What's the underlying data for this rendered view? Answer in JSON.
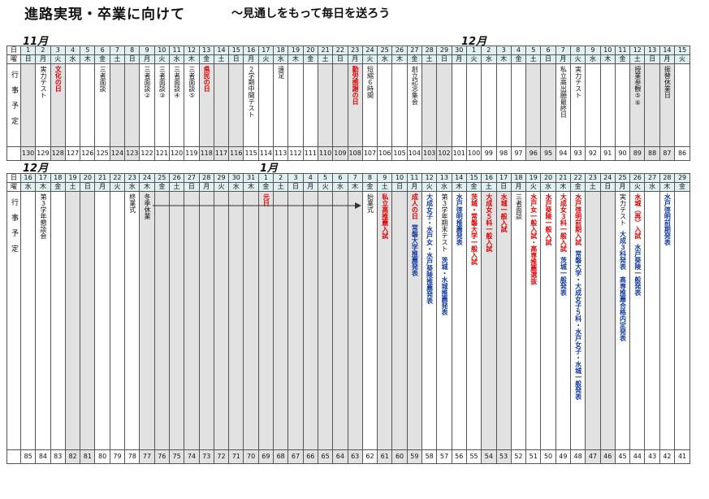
{
  "header": {
    "title": "進路実現・卒業に向けて",
    "subtitle": "～見通しをもって毎日を送ろう"
  },
  "labels": {
    "day": "日",
    "weekday": "曜",
    "events": "行事予定"
  },
  "table1": {
    "months": [
      {
        "label": "11月"
      },
      {
        "label": "12月"
      }
    ],
    "days": [
      {
        "d": "1",
        "w": "日",
        "e": "",
        "c": "130",
        "shade": true
      },
      {
        "d": "2",
        "w": "月",
        "e": "実力テスト",
        "c": "129"
      },
      {
        "d": "3",
        "w": "火",
        "e": "文化の日",
        "c": "128",
        "shade": true,
        "color": "red"
      },
      {
        "d": "4",
        "w": "水",
        "e": "",
        "c": "127"
      },
      {
        "d": "5",
        "w": "木",
        "e": "",
        "c": "126"
      },
      {
        "d": "6",
        "w": "金",
        "e": "三者面談",
        "c": "125"
      },
      {
        "d": "7",
        "w": "土",
        "e": "",
        "c": "124",
        "shade": true
      },
      {
        "d": "8",
        "w": "日",
        "e": "",
        "c": "123",
        "shade": true
      },
      {
        "d": "9",
        "w": "月",
        "e": "三者面談②",
        "c": "122"
      },
      {
        "d": "10",
        "w": "火",
        "e": "三者面談③",
        "c": "121"
      },
      {
        "d": "11",
        "w": "水",
        "e": "三者面談④",
        "c": "120"
      },
      {
        "d": "12",
        "w": "木",
        "e": "三者面談⑤",
        "c": "119"
      },
      {
        "d": "13",
        "w": "金",
        "e": "県民の日",
        "c": "118",
        "shade": true,
        "color": "red"
      },
      {
        "d": "14",
        "w": "土",
        "e": "",
        "c": "117",
        "shade": true
      },
      {
        "d": "15",
        "w": "日",
        "e": "",
        "c": "116",
        "shade": true
      },
      {
        "d": "16",
        "w": "月",
        "e": "２学期中間テスト",
        "c": "115"
      },
      {
        "d": "17",
        "w": "火",
        "e": "",
        "c": "114"
      },
      {
        "d": "18",
        "w": "水",
        "e": "遠足",
        "c": "113"
      },
      {
        "d": "19",
        "w": "木",
        "e": "",
        "c": "112"
      },
      {
        "d": "20",
        "w": "金",
        "e": "",
        "c": "111"
      },
      {
        "d": "21",
        "w": "土",
        "e": "",
        "c": "110",
        "shade": true
      },
      {
        "d": "22",
        "w": "日",
        "e": "",
        "c": "109",
        "shade": true
      },
      {
        "d": "23",
        "w": "月",
        "e": "勤労感謝の日",
        "c": "108",
        "shade": true,
        "color": "red"
      },
      {
        "d": "24",
        "w": "火",
        "e": "短縮６時間",
        "c": "107"
      },
      {
        "d": "25",
        "w": "水",
        "e": "",
        "c": "106"
      },
      {
        "d": "26",
        "w": "木",
        "e": "",
        "c": "105"
      },
      {
        "d": "27",
        "w": "金",
        "e": "創立記念集会",
        "c": "104"
      },
      {
        "d": "28",
        "w": "土",
        "e": "",
        "c": "103",
        "shade": true
      },
      {
        "d": "29",
        "w": "日",
        "e": "",
        "c": "102",
        "shade": true
      },
      {
        "d": "30",
        "w": "月",
        "e": "",
        "c": "101"
      },
      {
        "d": "1",
        "w": "火",
        "e": "",
        "c": "100"
      },
      {
        "d": "2",
        "w": "水",
        "e": "",
        "c": "99"
      },
      {
        "d": "3",
        "w": "木",
        "e": "",
        "c": "98"
      },
      {
        "d": "4",
        "w": "金",
        "e": "",
        "c": "97"
      },
      {
        "d": "5",
        "w": "土",
        "e": "",
        "c": "96",
        "shade": true
      },
      {
        "d": "6",
        "w": "日",
        "e": "",
        "c": "95",
        "shade": true
      },
      {
        "d": "7",
        "w": "月",
        "e": "私立高出願最終日",
        "c": "94"
      },
      {
        "d": "8",
        "w": "火",
        "e": "実力テスト",
        "c": "93"
      },
      {
        "d": "9",
        "w": "水",
        "e": "",
        "c": "92"
      },
      {
        "d": "10",
        "w": "木",
        "e": "",
        "c": "91"
      },
      {
        "d": "11",
        "w": "金",
        "e": "",
        "c": "90"
      },
      {
        "d": "12",
        "w": "土",
        "e": "授業参観⑤⑥",
        "c": "89",
        "shade": true
      },
      {
        "d": "13",
        "w": "日",
        "e": "",
        "c": "88",
        "shade": true
      },
      {
        "d": "14",
        "w": "月",
        "e": "振替休業日",
        "c": "87",
        "shade": true
      },
      {
        "d": "15",
        "w": "火",
        "e": "",
        "c": "86"
      }
    ]
  },
  "table2": {
    "months": [
      {
        "label": "12月"
      },
      {
        "label": "1月"
      }
    ],
    "days": [
      {
        "d": "16",
        "w": "水",
        "e": "",
        "c": "85"
      },
      {
        "d": "17",
        "w": "木",
        "e": "第３学年懇談会",
        "c": "84"
      },
      {
        "d": "18",
        "w": "金",
        "e": "",
        "c": "83"
      },
      {
        "d": "19",
        "w": "土",
        "e": "",
        "c": "82",
        "shade": true
      },
      {
        "d": "20",
        "w": "日",
        "e": "",
        "c": "81",
        "shade": true
      },
      {
        "d": "21",
        "w": "月",
        "e": "",
        "c": "80"
      },
      {
        "d": "22",
        "w": "火",
        "e": "",
        "c": "79"
      },
      {
        "d": "23",
        "w": "水",
        "e": "終業式",
        "c": "78"
      },
      {
        "d": "24",
        "w": "木",
        "e": "冬季休業",
        "c": "77",
        "shade": true
      },
      {
        "d": "25",
        "w": "金",
        "e": "",
        "c": "76",
        "shade": true
      },
      {
        "d": "26",
        "w": "土",
        "e": "",
        "c": "75",
        "shade": true
      },
      {
        "d": "27",
        "w": "日",
        "e": "",
        "c": "74",
        "shade": true
      },
      {
        "d": "28",
        "w": "月",
        "e": "",
        "c": "73",
        "shade": true
      },
      {
        "d": "29",
        "w": "火",
        "e": "",
        "c": "72",
        "shade": true
      },
      {
        "d": "30",
        "w": "水",
        "e": "",
        "c": "71",
        "shade": true
      },
      {
        "d": "31",
        "w": "木",
        "e": "",
        "c": "70",
        "shade": true
      },
      {
        "d": "1",
        "w": "金",
        "e": "元日",
        "c": "69",
        "shade": true,
        "color": "red"
      },
      {
        "d": "2",
        "w": "土",
        "e": "",
        "c": "68",
        "shade": true
      },
      {
        "d": "3",
        "w": "日",
        "e": "",
        "c": "67",
        "shade": true
      },
      {
        "d": "4",
        "w": "月",
        "e": "",
        "c": "66",
        "shade": true
      },
      {
        "d": "5",
        "w": "火",
        "e": "",
        "c": "65",
        "shade": true
      },
      {
        "d": "6",
        "w": "水",
        "e": "",
        "c": "64",
        "shade": true
      },
      {
        "d": "7",
        "w": "木",
        "e": "",
        "c": "63",
        "shade": true
      },
      {
        "d": "8",
        "w": "金",
        "e": "始業式",
        "c": "62"
      },
      {
        "d": "9",
        "w": "土",
        "e": "私立高推薦入試",
        "c": "61",
        "shade": true,
        "color": "red"
      },
      {
        "d": "10",
        "w": "日",
        "e": "",
        "c": "60",
        "shade": true
      },
      {
        "d": "11",
        "w": "月",
        "e": "成人の日",
        "e2": "常磐大学推薦発表",
        "c": "59",
        "shade": true,
        "color": "red",
        "color2": "blue"
      },
      {
        "d": "12",
        "w": "火",
        "e": "大成女子・水戸女・水戸葵陵推薦発表",
        "c": "58",
        "color": "blue"
      },
      {
        "d": "13",
        "w": "水",
        "e": "第３学年期末テスト",
        "e2": "茨城・水城推薦発表",
        "c": "57",
        "color2": "blue"
      },
      {
        "d": "14",
        "w": "木",
        "e": "水戸啓明推薦発表",
        "c": "56",
        "color": "blue"
      },
      {
        "d": "15",
        "w": "金",
        "e": "茨城・常磐大学一般入試",
        "c": "55",
        "color": "red"
      },
      {
        "d": "16",
        "w": "土",
        "e": "大成女５科一般入試",
        "c": "54",
        "shade": true,
        "color": "red"
      },
      {
        "d": "17",
        "w": "日",
        "e": "水城一般入試",
        "c": "53",
        "shade": true,
        "color": "red"
      },
      {
        "d": "18",
        "w": "月",
        "e": "三者面談",
        "c": "52"
      },
      {
        "d": "19",
        "w": "火",
        "e": "水戸女一般入試・高専推薦選抜",
        "c": "51",
        "color": "red"
      },
      {
        "d": "20",
        "w": "水",
        "e": "水戸葵陵一般入試",
        "c": "50",
        "color": "red"
      },
      {
        "d": "21",
        "w": "木",
        "e": "大成女３科一般入試",
        "e2": "茨城一般発表",
        "c": "49",
        "color": "red",
        "color2": "blue"
      },
      {
        "d": "22",
        "w": "金",
        "e": "水戸啓明前期入試",
        "e2": "常磐大学・大成女子５科・水戸女子・水城一般発表",
        "c": "48",
        "color": "red",
        "color2": "blue"
      },
      {
        "d": "23",
        "w": "土",
        "e": "",
        "c": "47",
        "shade": true
      },
      {
        "d": "24",
        "w": "日",
        "e": "",
        "c": "46",
        "shade": true
      },
      {
        "d": "25",
        "w": "月",
        "e": "実力テスト",
        "e2": "大成３科発表　高専推薦合格内定発表",
        "c": "45",
        "color2": "blue"
      },
      {
        "d": "26",
        "w": "火",
        "e": "水城（再）入試",
        "e2": "水戸葵陵一般発表",
        "c": "44",
        "color": "red",
        "color2": "blue"
      },
      {
        "d": "27",
        "w": "水",
        "e": "",
        "c": "43"
      },
      {
        "d": "28",
        "w": "木",
        "e": "水戸啓明前期発表",
        "c": "42",
        "color": "blue"
      },
      {
        "d": "29",
        "w": "金",
        "e": "",
        "c": "41"
      }
    ]
  }
}
